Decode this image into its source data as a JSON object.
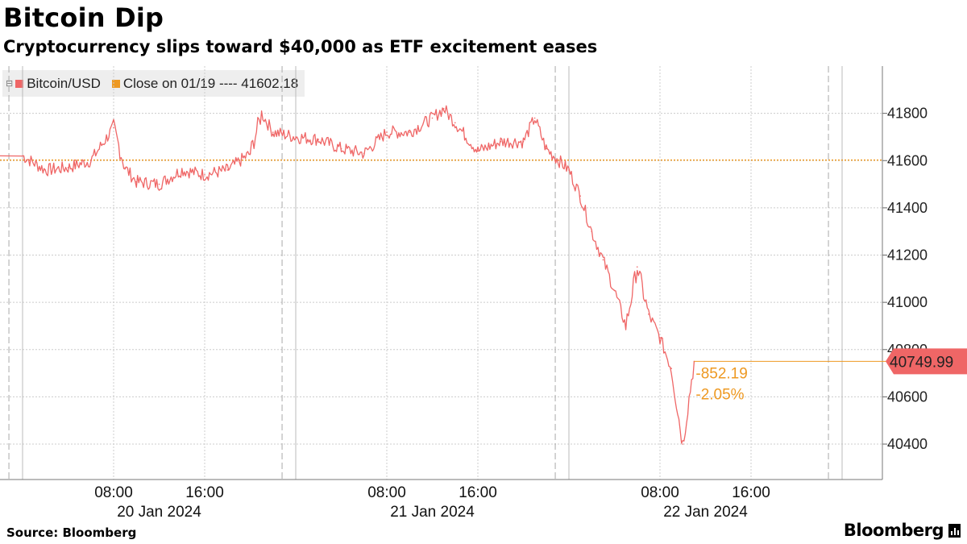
{
  "header": {
    "title": "Bitcoin Dip",
    "subtitle": "Cryptocurrency slips toward $40,000 as ETF excitement eases"
  },
  "legend": {
    "series_label": "Bitcoin/USD",
    "close_label": "Close on 01/19 ---- 41602.18"
  },
  "colors": {
    "series": "#ef6666",
    "close": "#ee9922",
    "grid": "#cccccc",
    "label_bg": "#ef6666"
  },
  "chart_data": {
    "type": "line",
    "title": "Bitcoin Dip",
    "subtitle": "Cryptocurrency slips toward $40,000 as ETF excitement eases",
    "x_ticks": [
      "08:00",
      "16:00",
      "08:00",
      "16:00",
      "08:00",
      "16:00"
    ],
    "date_labels": [
      "20 Jan 2024",
      "21 Jan 2024",
      "22 Jan 2024"
    ],
    "y_ticks": [
      40400,
      40600,
      40800,
      41000,
      41200,
      41400,
      41600,
      41800
    ],
    "ylim": [
      40250,
      42000
    ],
    "grid": true,
    "reference_line": {
      "name": "Close on 01/19",
      "value": 41602.18
    },
    "last_value": "40749.99",
    "change_abs": "-852.19",
    "change_pct": "-2.05%",
    "series": [
      {
        "name": "Bitcoin/USD",
        "x": [
          "01-20 00:00",
          "01-20 02:00",
          "01-20 04:00",
          "01-20 06:00",
          "01-20 08:00",
          "01-20 09:00",
          "01-20 10:00",
          "01-20 12:00",
          "01-20 14:00",
          "01-20 16:00",
          "01-20 18:00",
          "01-20 20:00",
          "01-20 21:00",
          "01-20 22:00",
          "01-21 00:00",
          "01-21 02:00",
          "01-21 04:00",
          "01-21 06:00",
          "01-21 08:00",
          "01-21 10:00",
          "01-21 12:00",
          "01-21 13:00",
          "01-21 14:00",
          "01-21 16:00",
          "01-21 18:00",
          "01-21 20:00",
          "01-21 21:00",
          "01-21 22:00",
          "01-22 00:00",
          "01-22 01:00",
          "01-22 02:00",
          "01-22 03:00",
          "01-22 04:00",
          "01-22 05:00",
          "01-22 06:00",
          "01-22 07:00",
          "01-22 08:00",
          "01-22 09:00",
          "01-22 10:00",
          "01-22 11:00"
        ],
        "values": [
          41620,
          41560,
          41570,
          41600,
          41740,
          41570,
          41510,
          41500,
          41560,
          41540,
          41560,
          41630,
          41800,
          41720,
          41700,
          41690,
          41650,
          41630,
          41720,
          41720,
          41780,
          41820,
          41760,
          41640,
          41680,
          41680,
          41780,
          41650,
          41560,
          41450,
          41300,
          41180,
          41050,
          40900,
          41150,
          40950,
          40850,
          40720,
          40400,
          40750
        ]
      }
    ]
  },
  "footer": {
    "source": "Source: Bloomberg",
    "brand": "Bloomberg"
  }
}
